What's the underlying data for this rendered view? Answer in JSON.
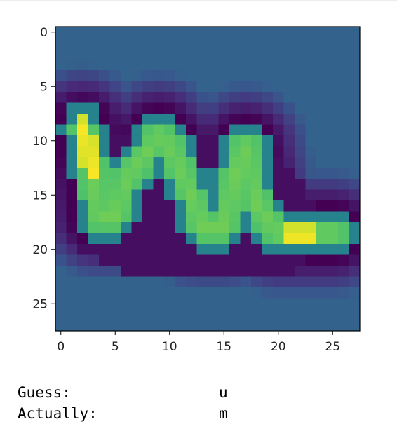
{
  "chart_data": {
    "type": "heatmap",
    "colormap": "viridis",
    "grid": false,
    "xlim": [
      -0.5,
      27.5
    ],
    "ylim": [
      27.5,
      -0.5
    ],
    "x_ticks": [
      "0",
      "5",
      "10",
      "15",
      "20",
      "25"
    ],
    "y_ticks": [
      "0",
      "5",
      "10",
      "15",
      "20",
      "25"
    ],
    "background_value": 0.32,
    "strokes": [
      [
        [
          2,
          8.8
        ],
        [
          3,
          13
        ],
        [
          3.5,
          17
        ],
        [
          5,
          17
        ],
        [
          6,
          13.5
        ],
        [
          8,
          11
        ],
        [
          9,
          9.5
        ],
        [
          10,
          10.5
        ],
        [
          12,
          15
        ],
        [
          13,
          18
        ],
        [
          15,
          18
        ],
        [
          16,
          13
        ],
        [
          17,
          10.5
        ],
        [
          18,
          16
        ],
        [
          20,
          18.5
        ],
        [
          25,
          18.5
        ]
      ]
    ],
    "highlights": [
      [
        [
          2,
          8.8
        ],
        [
          3,
          13
        ]
      ],
      [
        [
          21,
          18.8
        ],
        [
          23,
          18.8
        ]
      ]
    ],
    "halo_regions": [
      [
        [
          4.5,
          9.5
        ],
        [
          12,
          9.5
        ],
        [
          18,
          9.5
        ],
        [
          21,
          12
        ],
        [
          24,
          17
        ],
        [
          22,
          22
        ],
        [
          14,
          23
        ],
        [
          6,
          22
        ],
        [
          2,
          20
        ],
        [
          3,
          14
        ]
      ]
    ]
  },
  "output": {
    "guess_label": "Guess:",
    "guess_value": "u",
    "actual_label": "Actually:",
    "actual_value": "m"
  }
}
